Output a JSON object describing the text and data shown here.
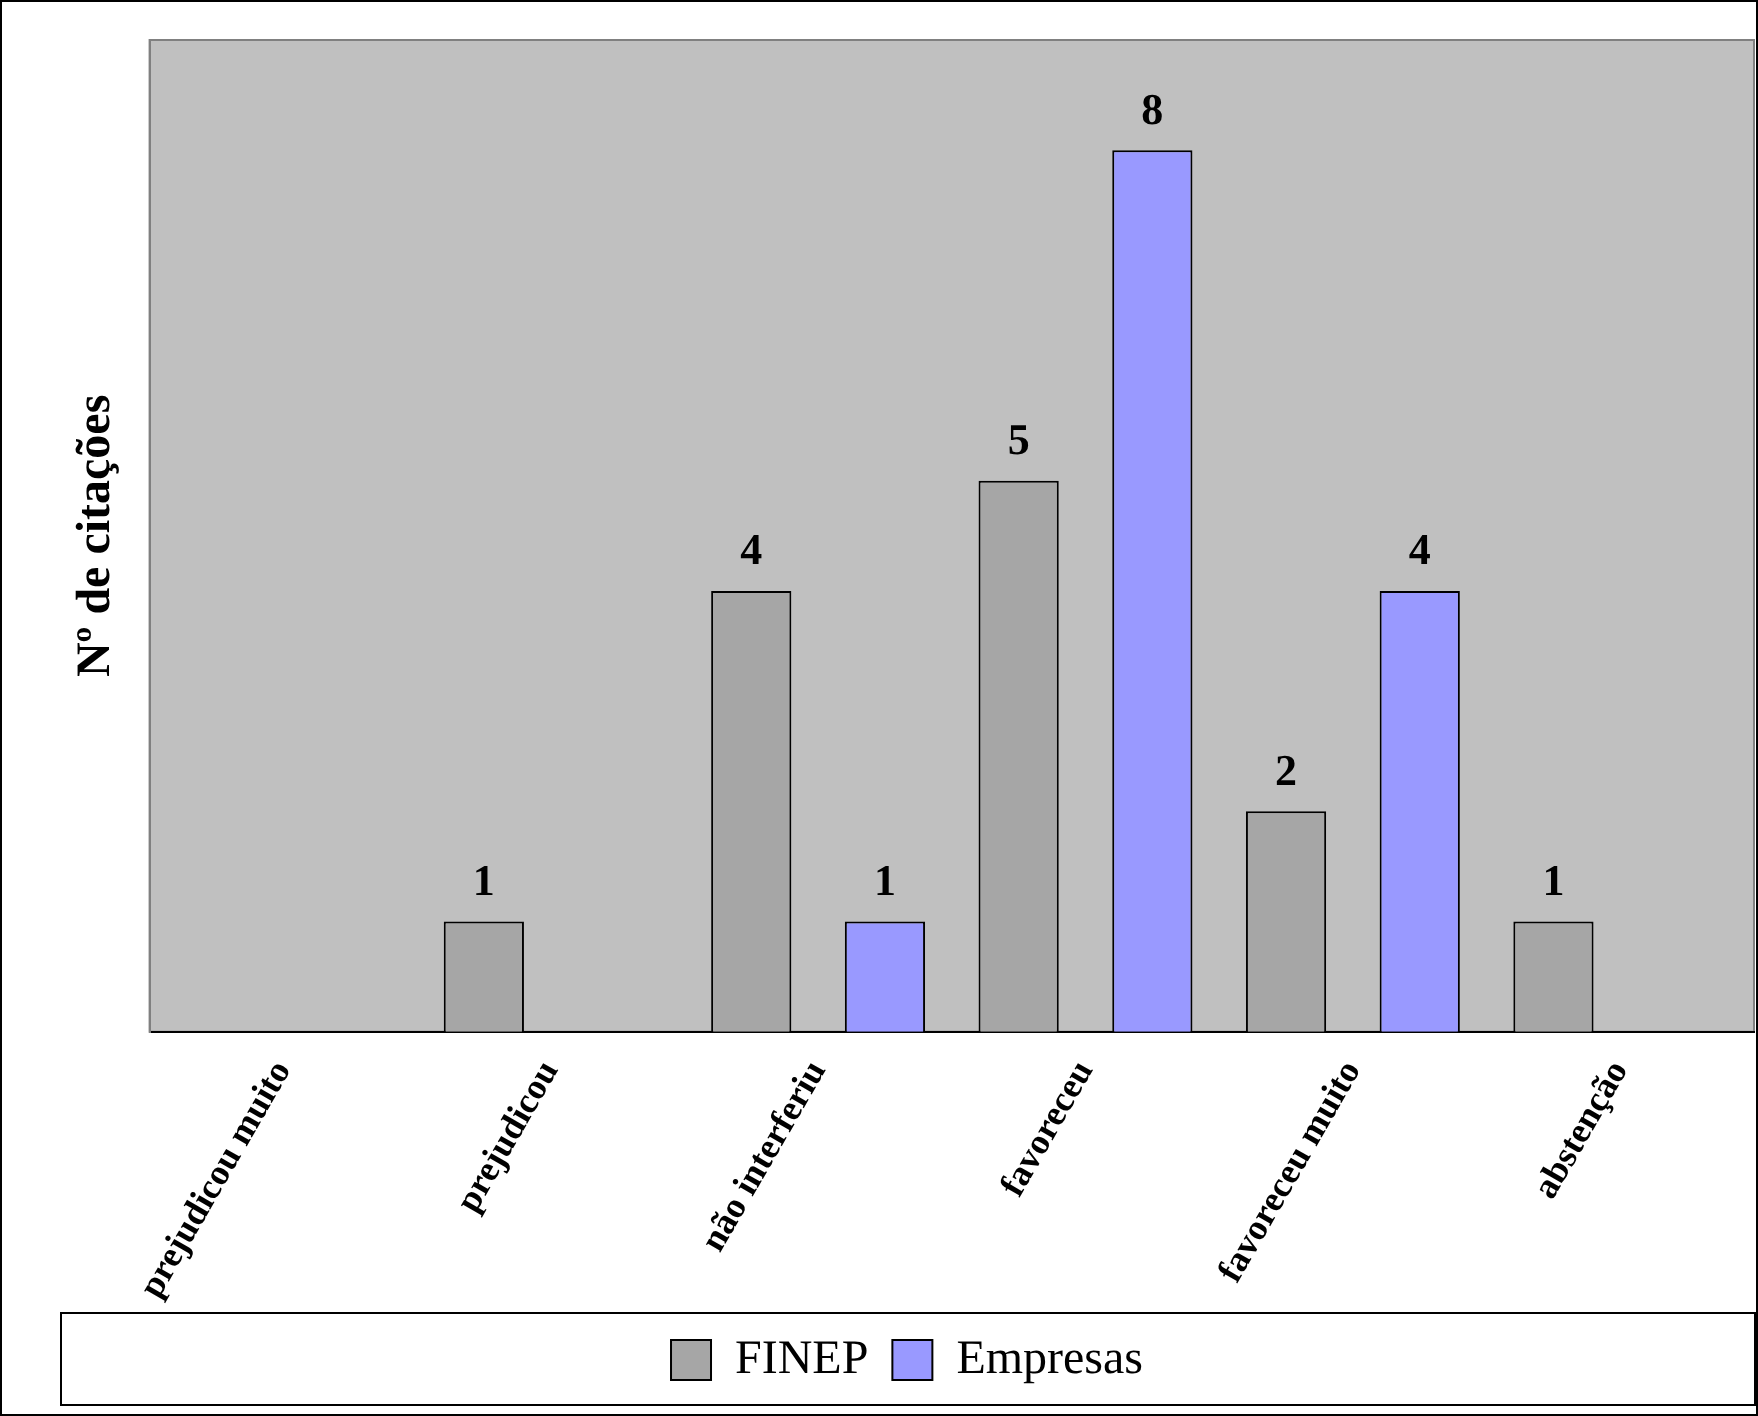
{
  "chart_data": {
    "type": "bar",
    "ylabel": "Nº de citações",
    "categories": [
      "prejudicou muito",
      "prejudicou",
      "não interferiu",
      "favoreceu",
      "favoreceu muito",
      "abstenção"
    ],
    "series": [
      {
        "name": "FINEP",
        "color": "#a6a6a6",
        "values": [
          null,
          1,
          4,
          5,
          2,
          1
        ]
      },
      {
        "name": "Empresas",
        "color": "#9999ff",
        "values": [
          null,
          null,
          1,
          8,
          4,
          null
        ]
      }
    ],
    "ylim": [
      0,
      9
    ],
    "tick_labels": "x",
    "data_labels": true,
    "grid": false,
    "legend": "bottom"
  }
}
